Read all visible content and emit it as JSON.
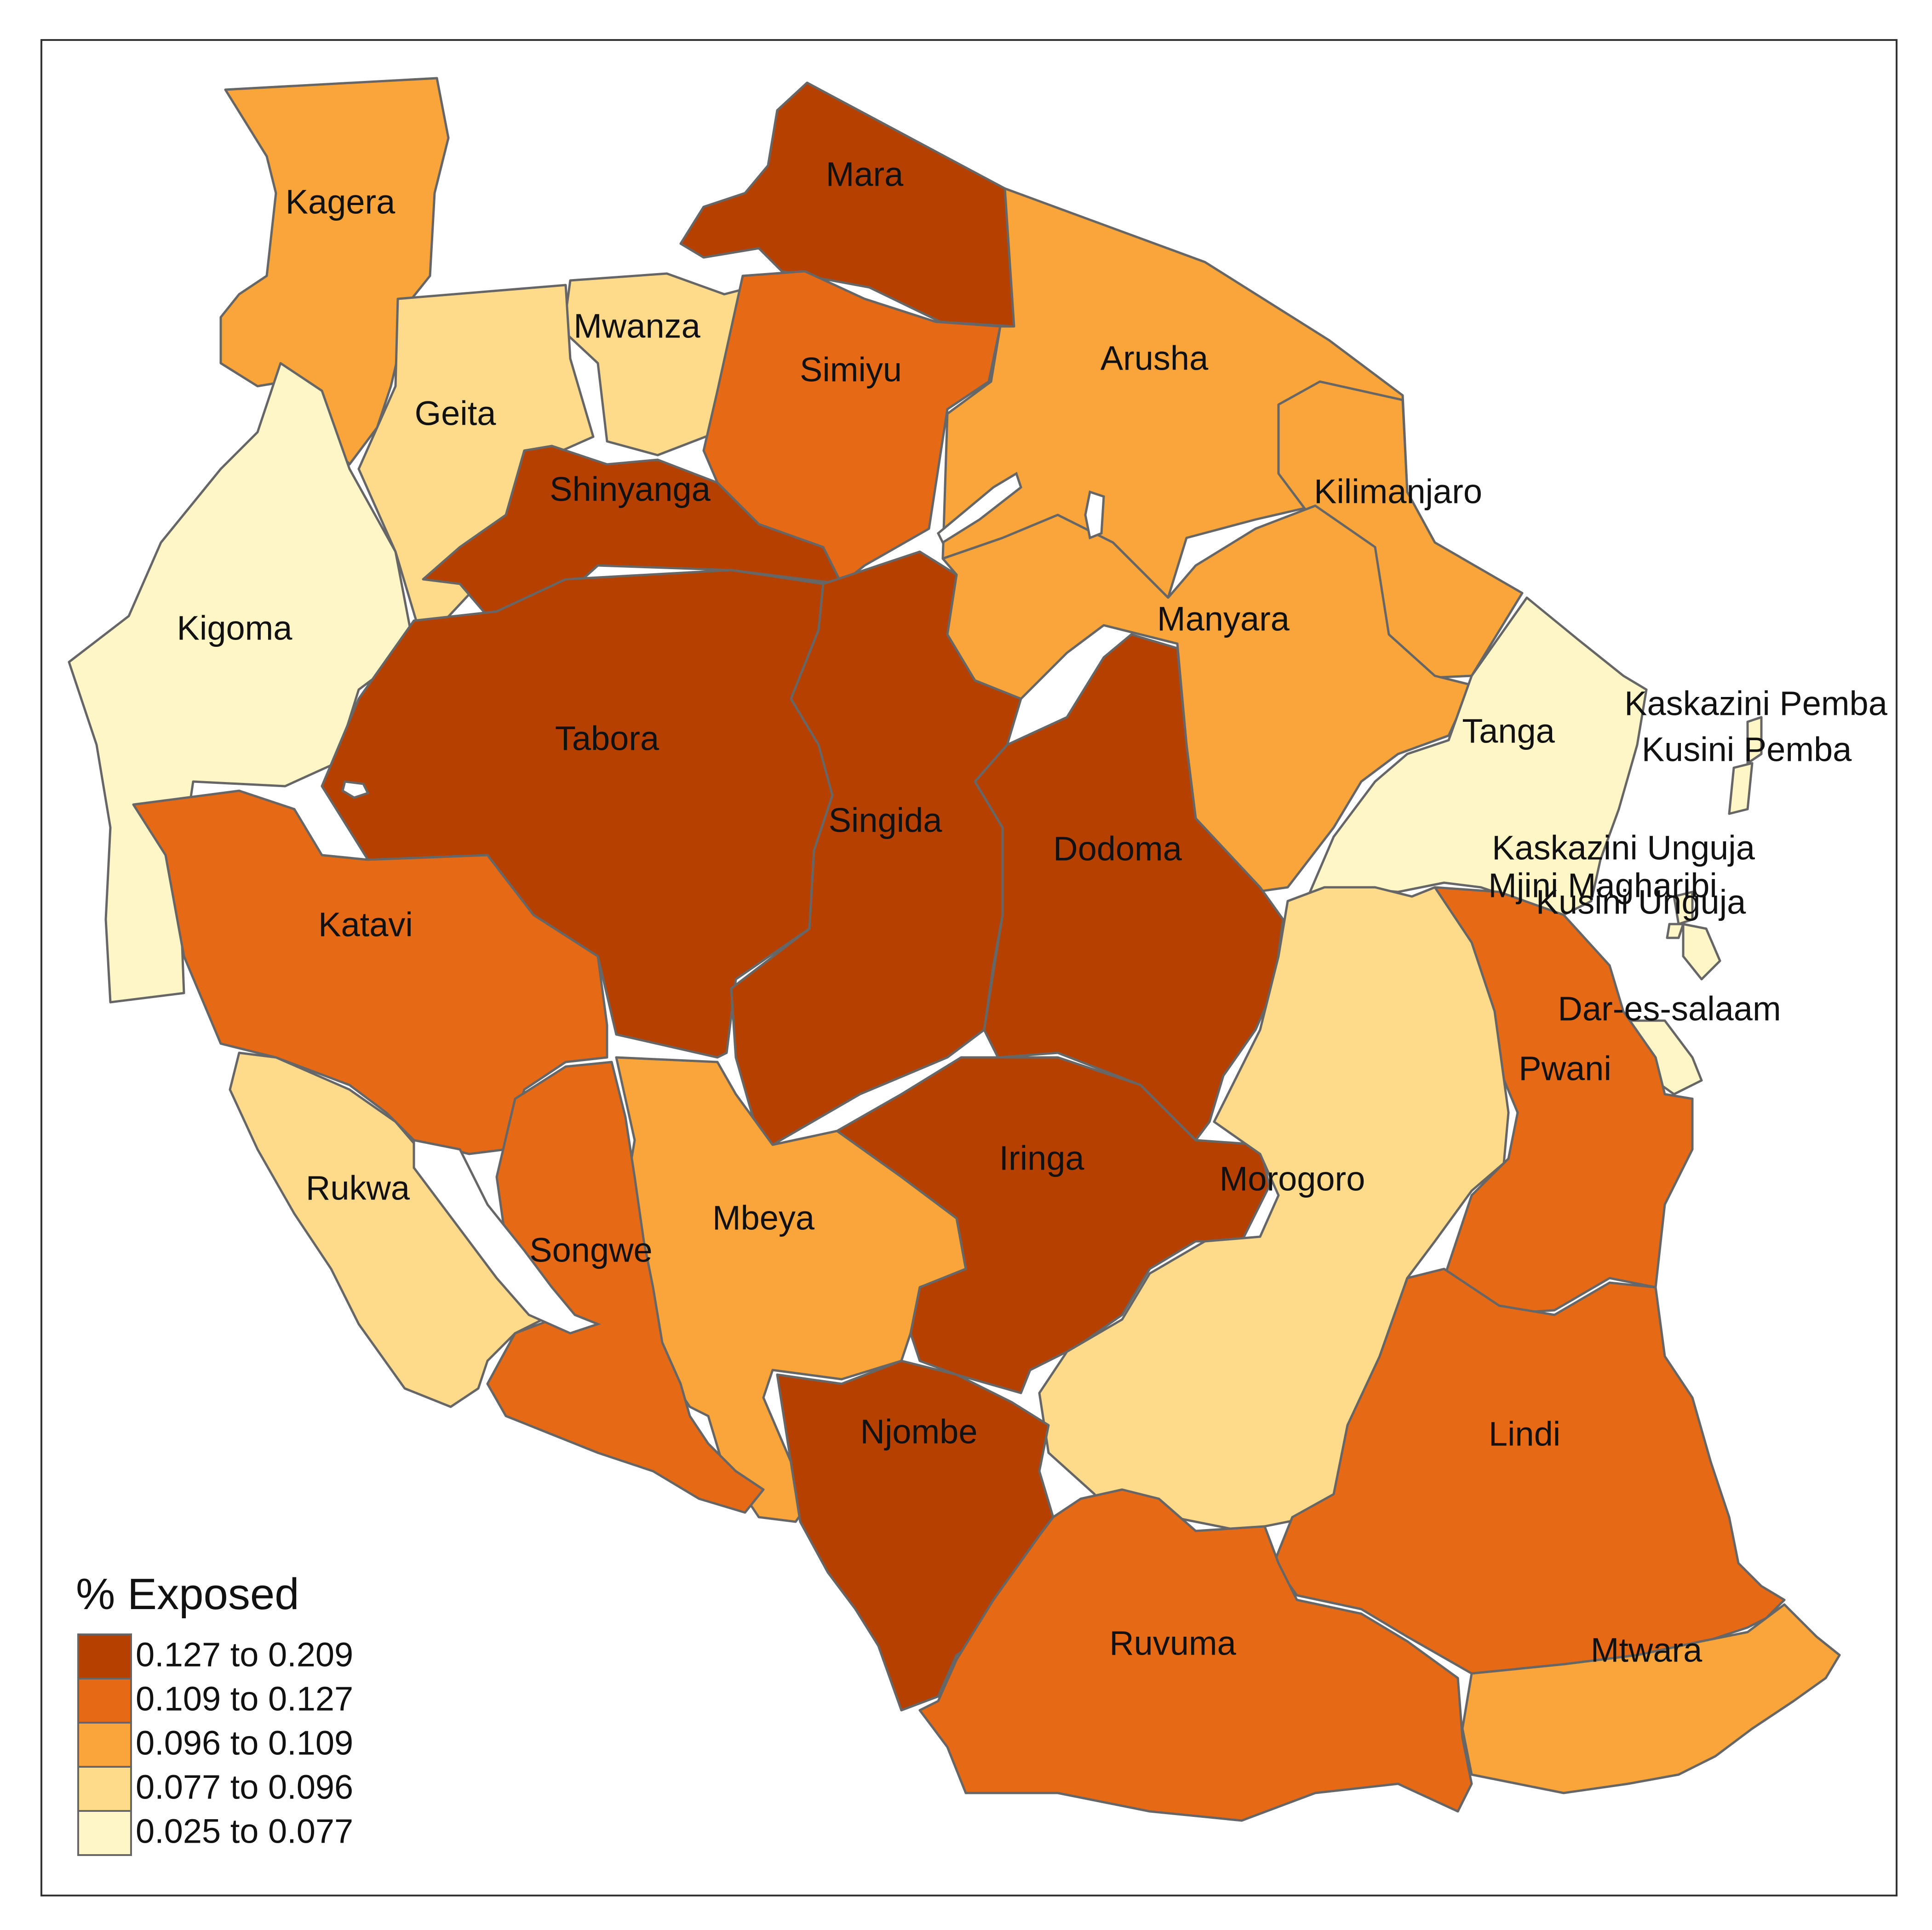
{
  "legend": {
    "title": "% Exposed",
    "classes": [
      {
        "label": "0.127 to 0.209",
        "color": "#b54000"
      },
      {
        "label": "0.109 to 0.127",
        "color": "#e66a16"
      },
      {
        "label": "0.096 to 0.109",
        "color": "#f9a53a"
      },
      {
        "label": "0.077 to 0.096",
        "color": "#fedb8a"
      },
      {
        "label": "0.025 to 0.077",
        "color": "#fff6c8"
      }
    ]
  },
  "regions": [
    {
      "name": "Kagera",
      "class": 2
    },
    {
      "name": "Mara",
      "class": 0
    },
    {
      "name": "Mwanza",
      "class": 3
    },
    {
      "name": "Geita",
      "class": 3
    },
    {
      "name": "Simiyu",
      "class": 1
    },
    {
      "name": "Arusha",
      "class": 2
    },
    {
      "name": "Kilimanjaro",
      "class": 2
    },
    {
      "name": "Shinyanga",
      "class": 0
    },
    {
      "name": "Kigoma",
      "class": 4
    },
    {
      "name": "Tabora",
      "class": 0
    },
    {
      "name": "Singida",
      "class": 0
    },
    {
      "name": "Manyara",
      "class": 2
    },
    {
      "name": "Tanga",
      "class": 4
    },
    {
      "name": "Kaskazini Pemba",
      "class": 4
    },
    {
      "name": "Kusini Pemba",
      "class": 4
    },
    {
      "name": "Dodoma",
      "class": 0
    },
    {
      "name": "Kaskazini Unguja",
      "class": 4
    },
    {
      "name": "Mjini Magharibi",
      "class": 4
    },
    {
      "name": "Kusini Unguja",
      "class": 4
    },
    {
      "name": "Katavi",
      "class": 1
    },
    {
      "name": "Dar-es-salaam",
      "class": 4
    },
    {
      "name": "Pwani",
      "class": 1
    },
    {
      "name": "Iringa",
      "class": 0
    },
    {
      "name": "Morogoro",
      "class": 3
    },
    {
      "name": "Rukwa",
      "class": 3
    },
    {
      "name": "Mbeya",
      "class": 2
    },
    {
      "name": "Songwe",
      "class": 1
    },
    {
      "name": "Njombe",
      "class": 0
    },
    {
      "name": "Lindi",
      "class": 1
    },
    {
      "name": "Ruvuma",
      "class": 1
    },
    {
      "name": "Mtwara",
      "class": 2
    }
  ]
}
